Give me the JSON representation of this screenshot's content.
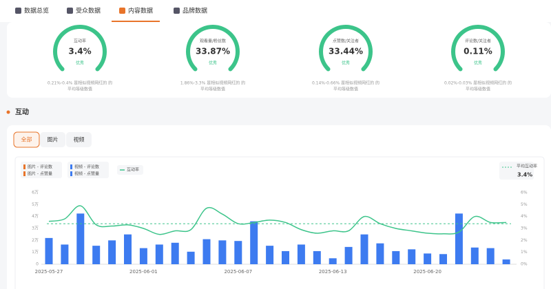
{
  "tabs": [
    {
      "label": "数据总览"
    },
    {
      "label": "受众数据"
    },
    {
      "label": "内容数据",
      "active": true
    },
    {
      "label": "品牌数据"
    }
  ],
  "gauges": [
    {
      "label": "互动率",
      "value": "3.4%",
      "badge": "优秀",
      "desc": [
        "0.21%-0.4% 是相似视频网红的 的",
        "平均等级数值"
      ]
    },
    {
      "label": "观看量/粉丝数",
      "value": "33.87%",
      "badge": "优秀",
      "desc": [
        "1.86%-3.3% 是相似视频网红的 的",
        "平均等级数值"
      ]
    },
    {
      "label": "点赞数/关注者",
      "value": "33.44%",
      "badge": "优秀",
      "desc": [
        "0.14%-0.66% 是相似视频网红的 的",
        "平均等级数值"
      ]
    },
    {
      "label": "评论数/关注者",
      "value": "0.11%",
      "badge": "优秀",
      "desc": [
        "0.02%-0.03% 是相似视频网红的 的",
        "平均等级数值"
      ]
    }
  ],
  "section_title": "互动",
  "filters": [
    {
      "label": "全部",
      "active": true
    },
    {
      "label": "图片"
    },
    {
      "label": "视频"
    }
  ],
  "chart_data": {
    "type": "bar",
    "legend_groups": [
      {
        "color": "#e8742a",
        "names": [
          "图片 - 评论数",
          "图片 - 点赞量"
        ]
      },
      {
        "color": "#3d7bf0",
        "names": [
          "视频 - 评论数",
          "视频 - 点赞量"
        ]
      }
    ],
    "categories": [
      "2025-05-27",
      null,
      null,
      null,
      null,
      null,
      "2025-06-01",
      null,
      null,
      null,
      null,
      null,
      "2025-06-07",
      null,
      null,
      null,
      null,
      null,
      "2025-06-13",
      null,
      null,
      null,
      null,
      null,
      "2025-06-20",
      null,
      null,
      null,
      null,
      null
    ],
    "series": [
      {
        "name": "视频 - 点赞量",
        "color": "#3d7bf0",
        "values": [
          22000,
          16500,
          42500,
          15500,
          20000,
          25000,
          13500,
          16500,
          18000,
          10500,
          21000,
          20000,
          19500,
          36000,
          15500,
          11000,
          16500,
          11000,
          5000,
          14500,
          25000,
          17500,
          11000,
          12500,
          9000,
          8500,
          42500,
          14000,
          13500,
          4000
        ]
      },
      {
        "name": "互动率",
        "color": "#3cc48a",
        "axis": "y2",
        "values": [
          3.6,
          3.8,
          4.9,
          3.3,
          3.2,
          3.3,
          3.0,
          2.5,
          2.8,
          2.9,
          4.7,
          4.2,
          3.4,
          3.5,
          3.7,
          3.5,
          2.9,
          2.6,
          2.8,
          2.8,
          4.0,
          3.4,
          3.0,
          2.8,
          2.6,
          2.55,
          2.7,
          4.0,
          3.5,
          3.5
        ]
      }
    ],
    "average": {
      "name": "平均互动率",
      "value": 3.4,
      "label": "3.4%",
      "color": "#3cc48a"
    },
    "ylim": [
      0,
      60000
    ],
    "yticks": [
      0,
      {
        "value": 10000,
        "label": "1万"
      },
      {
        "value": 20000,
        "label": "2万"
      },
      {
        "value": 30000,
        "label": "3万"
      },
      {
        "value": 40000,
        "label": "4万"
      },
      {
        "value": 50000,
        "label": "5万"
      },
      {
        "value": 60000,
        "label": "6万"
      }
    ],
    "y2lim": [
      0,
      6
    ],
    "y2ticks": [
      {
        "value": 0,
        "label": "0%"
      },
      {
        "value": 1,
        "label": "1%"
      },
      {
        "value": 2,
        "label": "2%"
      },
      {
        "value": 3,
        "label": "3%"
      },
      {
        "value": 4,
        "label": "4%"
      },
      {
        "value": 5,
        "label": "5%"
      },
      {
        "value": 6,
        "label": "6%"
      }
    ]
  }
}
